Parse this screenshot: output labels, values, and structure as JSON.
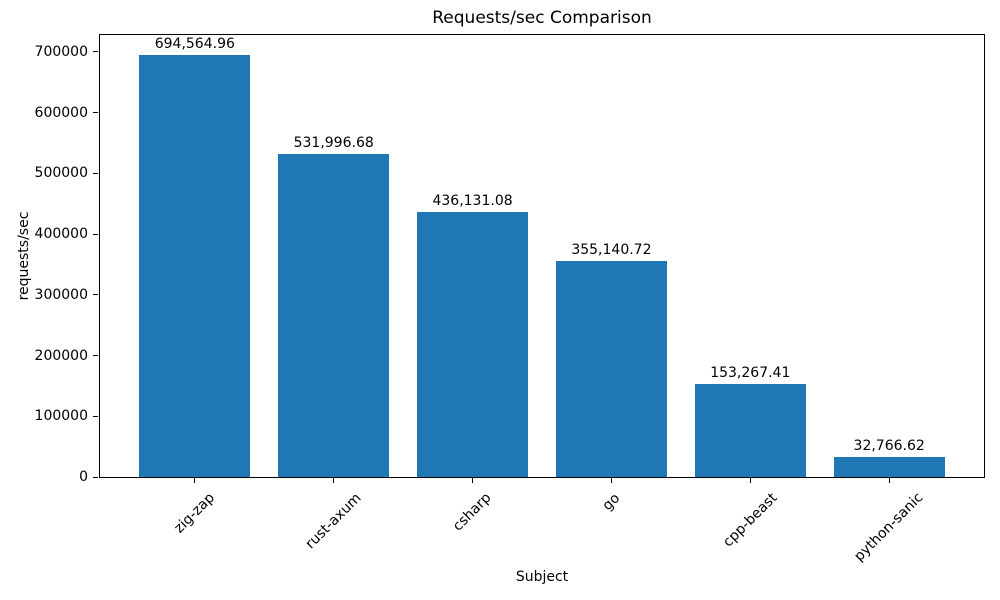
{
  "chart_data": {
    "type": "bar",
    "title": "Requests/sec Comparison",
    "xlabel": "Subject",
    "ylabel": "requests/sec",
    "categories": [
      "zig-zap",
      "rust-axum",
      "csharp",
      "go",
      "cpp-beast",
      "python-sanic"
    ],
    "values": [
      694564.96,
      531996.68,
      436131.08,
      355140.72,
      153267.41,
      32766.62
    ],
    "value_labels": [
      "694,564.96",
      "531,996.68",
      "436,131.08",
      "355,140.72",
      "153,267.41",
      "32,766.62"
    ],
    "ylim": [
      0,
      729293
    ],
    "yticks": [
      0,
      100000,
      200000,
      300000,
      400000,
      500000,
      600000,
      700000
    ],
    "ytick_labels": [
      "0",
      "100000",
      "200000",
      "300000",
      "400000",
      "500000",
      "600000",
      "700000"
    ],
    "bar_color": "#1f77b4",
    "bar_width_fraction": 0.8,
    "grid": false,
    "legend": "none",
    "x_tick_rotation_deg": 45
  }
}
